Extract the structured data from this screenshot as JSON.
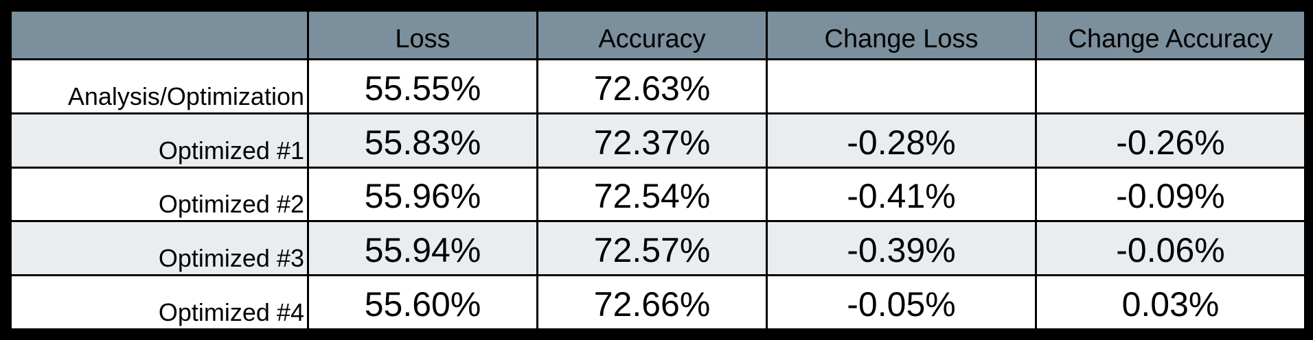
{
  "chart_data": {
    "type": "table",
    "columns": [
      "",
      "Loss",
      "Accuracy",
      "Change Loss",
      "Change Accuracy"
    ],
    "rows": [
      {
        "label": "Analysis/Optimization",
        "loss": "55.55%",
        "accuracy": "72.63%",
        "change_loss": "",
        "change_accuracy": ""
      },
      {
        "label": "Optimized #1",
        "loss": "55.83%",
        "accuracy": "72.37%",
        "change_loss": "-0.28%",
        "change_accuracy": "-0.26%"
      },
      {
        "label": "Optimized #2",
        "loss": "55.96%",
        "accuracy": "72.54%",
        "change_loss": "-0.41%",
        "change_accuracy": "-0.09%"
      },
      {
        "label": "Optimized #3",
        "loss": "55.94%",
        "accuracy": "72.57%",
        "change_loss": "-0.39%",
        "change_accuracy": "-0.06%"
      },
      {
        "label": "Optimized #4",
        "loss": "55.60%",
        "accuracy": "72.66%",
        "change_loss": "-0.05%",
        "change_accuracy": "0.03%"
      }
    ]
  },
  "colors": {
    "header_background": "#7b8f9c",
    "row_background": "#ffffff",
    "alt_row_background": "#e9edf0",
    "border": "#000000"
  }
}
